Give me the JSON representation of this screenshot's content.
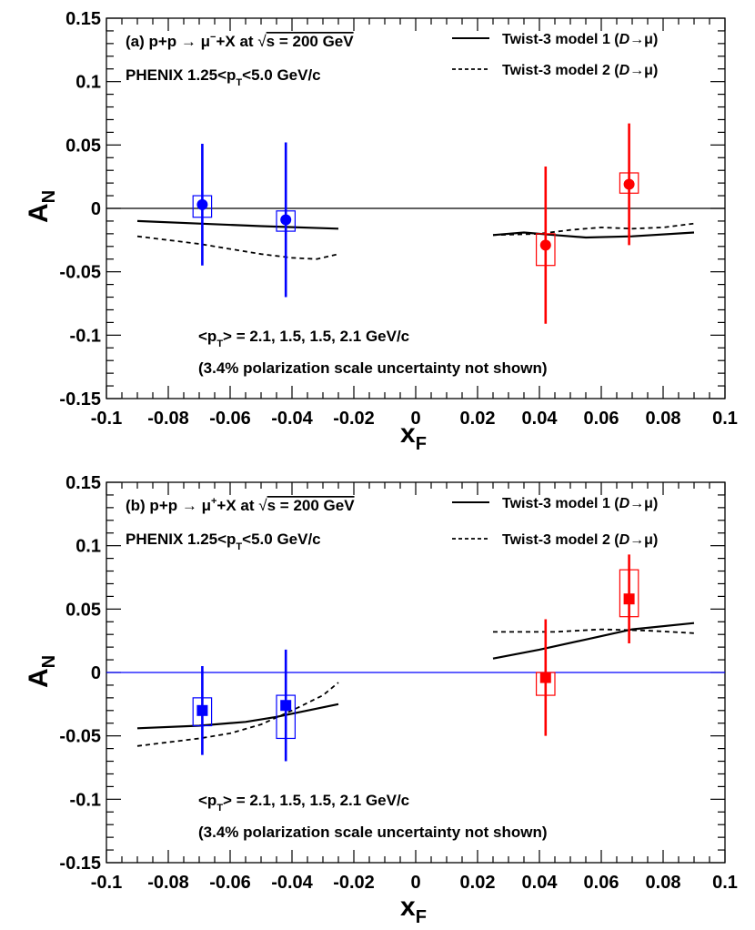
{
  "chart_data": [
    {
      "type": "scatter",
      "panel_label": "(a)",
      "title_prefix": "(a) p+p → μ",
      "title_charge": "−",
      "title_suffix": "+X at ",
      "title_sqrt": "√",
      "title_energy": "s = 200 GeV",
      "experiment_main": "PHENIX  1.25<p",
      "experiment_sub": "T",
      "experiment_tail": "<5.0 GeV/c",
      "annotation_pt_open": "<p",
      "annotation_pt_sub": "T",
      "annotation_pt_rest": "> = 2.1, 1.5, 1.5, 2.1 GeV/c",
      "annotation_pol": "(3.4% polarization scale uncertainty not shown)",
      "xlabel_main": "x",
      "xlabel_sub": "F",
      "ylabel_main": "A",
      "ylabel_sub": "N",
      "xlim": [
        -0.1,
        0.1
      ],
      "ylim": [
        -0.15,
        0.15
      ],
      "x_ticks": [
        -0.1,
        -0.08,
        -0.06,
        -0.04,
        -0.02,
        0,
        0.02,
        0.04,
        0.06,
        0.08,
        0.1
      ],
      "x_tick_labels": [
        "-0.1",
        "-0.08",
        "-0.06",
        "-0.04",
        "-0.02",
        "0",
        "0.02",
        "0.04",
        "0.06",
        "0.08",
        "0.1"
      ],
      "y_ticks": [
        -0.15,
        -0.1,
        -0.05,
        0,
        0.05,
        0.1,
        0.15
      ],
      "y_tick_labels": [
        "-0.15",
        "-0.1",
        "-0.05",
        "0",
        "0.05",
        "0.1",
        "0.15"
      ],
      "zero_line_color": "#000000",
      "marker": "circle",
      "legend": [
        {
          "prefix": "Twist-3 model 1 (",
          "italic": "D",
          "suffix": "→μ)",
          "style": "solid"
        },
        {
          "prefix": "Twist-3 model 2 (",
          "italic": "D",
          "suffix": "→μ)",
          "style": "dashed"
        }
      ],
      "points": [
        {
          "x": -0.069,
          "y": 0.003,
          "err": 0.048,
          "sys_low": -0.007,
          "sys_high": 0.01,
          "box_half_width": 0.003,
          "color": "#0000ff"
        },
        {
          "x": -0.042,
          "y": -0.009,
          "err": 0.061,
          "sys_low": -0.018,
          "sys_high": -0.002,
          "box_half_width": 0.003,
          "color": "#0000ff"
        },
        {
          "x": 0.042,
          "y": -0.029,
          "err": 0.062,
          "sys_low": -0.045,
          "sys_high": -0.02,
          "box_half_width": 0.003,
          "color": "#ff0000"
        },
        {
          "x": 0.069,
          "y": 0.019,
          "err": 0.048,
          "sys_low": 0.012,
          "sys_high": 0.028,
          "box_half_width": 0.003,
          "color": "#ff0000"
        }
      ],
      "series": [
        {
          "style": "solid",
          "segments": [
            [
              [
                -0.09,
                -0.01
              ],
              [
                -0.07,
                -0.012
              ],
              [
                -0.05,
                -0.014
              ],
              [
                -0.025,
                -0.016
              ]
            ],
            [
              [
                0.025,
                -0.021
              ],
              [
                0.035,
                -0.019
              ],
              [
                0.045,
                -0.021
              ],
              [
                0.055,
                -0.023
              ],
              [
                0.07,
                -0.022
              ],
              [
                0.09,
                -0.019
              ]
            ]
          ]
        },
        {
          "style": "dashed",
          "segments": [
            [
              [
                -0.09,
                -0.022
              ],
              [
                -0.07,
                -0.028
              ],
              [
                -0.06,
                -0.032
              ],
              [
                -0.05,
                -0.036
              ],
              [
                -0.04,
                -0.039
              ],
              [
                -0.032,
                -0.04
              ],
              [
                -0.025,
                -0.036
              ]
            ],
            [
              [
                0.025,
                -0.021
              ],
              [
                0.04,
                -0.02
              ],
              [
                0.05,
                -0.017
              ],
              [
                0.06,
                -0.015
              ],
              [
                0.07,
                -0.016
              ],
              [
                0.08,
                -0.015
              ],
              [
                0.09,
                -0.012
              ]
            ]
          ]
        }
      ]
    },
    {
      "type": "scatter",
      "panel_label": "(b)",
      "title_prefix": "(b) p+p → μ",
      "title_charge": "+",
      "title_suffix": "+X at ",
      "title_sqrt": "√",
      "title_energy": "s = 200 GeV",
      "experiment_main": "PHENIX  1.25<p",
      "experiment_sub": "T",
      "experiment_tail": "<5.0 GeV/c",
      "annotation_pt_open": "<p",
      "annotation_pt_sub": "T",
      "annotation_pt_rest": "> = 2.1, 1.5, 1.5, 2.1 GeV/c",
      "annotation_pol": "(3.4% polarization scale uncertainty not shown)",
      "xlabel_main": "x",
      "xlabel_sub": "F",
      "ylabel_main": "A",
      "ylabel_sub": "N",
      "xlim": [
        -0.1,
        0.1
      ],
      "ylim": [
        -0.15,
        0.15
      ],
      "x_ticks": [
        -0.1,
        -0.08,
        -0.06,
        -0.04,
        -0.02,
        0,
        0.02,
        0.04,
        0.06,
        0.08,
        0.1
      ],
      "x_tick_labels": [
        "-0.1",
        "-0.08",
        "-0.06",
        "-0.04",
        "-0.02",
        "0",
        "0.02",
        "0.04",
        "0.06",
        "0.08",
        "0.1"
      ],
      "y_ticks": [
        -0.15,
        -0.1,
        -0.05,
        0,
        0.05,
        0.1,
        0.15
      ],
      "y_tick_labels": [
        "-0.15",
        "-0.1",
        "-0.05",
        "0",
        "0.05",
        "0.1",
        "0.15"
      ],
      "zero_line_color": "#0000ff",
      "marker": "square",
      "legend": [
        {
          "prefix": "Twist-3 model 1 (",
          "italic": "D",
          "suffix": "→μ)",
          "style": "solid"
        },
        {
          "prefix": "Twist-3 model 2 (",
          "italic": "D",
          "suffix": "→μ)",
          "style": "dashed"
        }
      ],
      "points": [
        {
          "x": -0.069,
          "y": -0.03,
          "err": 0.035,
          "sys_low": -0.042,
          "sys_high": -0.02,
          "box_half_width": 0.003,
          "color": "#0000ff"
        },
        {
          "x": -0.042,
          "y": -0.026,
          "err": 0.044,
          "sys_low": -0.052,
          "sys_high": -0.018,
          "box_half_width": 0.003,
          "color": "#0000ff"
        },
        {
          "x": 0.042,
          "y": -0.004,
          "err": 0.046,
          "sys_low": -0.018,
          "sys_high": 0.0,
          "box_half_width": 0.003,
          "color": "#ff0000"
        },
        {
          "x": 0.069,
          "y": 0.058,
          "err": 0.035,
          "sys_low": 0.044,
          "sys_high": 0.081,
          "box_half_width": 0.003,
          "color": "#ff0000"
        }
      ],
      "series": [
        {
          "style": "solid",
          "segments": [
            [
              [
                -0.09,
                -0.044
              ],
              [
                -0.07,
                -0.042
              ],
              [
                -0.055,
                -0.039
              ],
              [
                -0.045,
                -0.035
              ],
              [
                -0.035,
                -0.03
              ],
              [
                -0.025,
                -0.025
              ]
            ],
            [
              [
                0.025,
                0.011
              ],
              [
                0.04,
                0.018
              ],
              [
                0.055,
                0.026
              ],
              [
                0.07,
                0.034
              ],
              [
                0.09,
                0.039
              ]
            ]
          ]
        },
        {
          "style": "dashed",
          "segments": [
            [
              [
                -0.09,
                -0.058
              ],
              [
                -0.07,
                -0.052
              ],
              [
                -0.06,
                -0.048
              ],
              [
                -0.05,
                -0.041
              ],
              [
                -0.04,
                -0.03
              ],
              [
                -0.03,
                -0.018
              ],
              [
                -0.025,
                -0.008
              ]
            ],
            [
              [
                0.025,
                0.032
              ],
              [
                0.045,
                0.032
              ],
              [
                0.06,
                0.034
              ],
              [
                0.075,
                0.033
              ],
              [
                0.09,
                0.031
              ]
            ]
          ]
        }
      ]
    }
  ]
}
